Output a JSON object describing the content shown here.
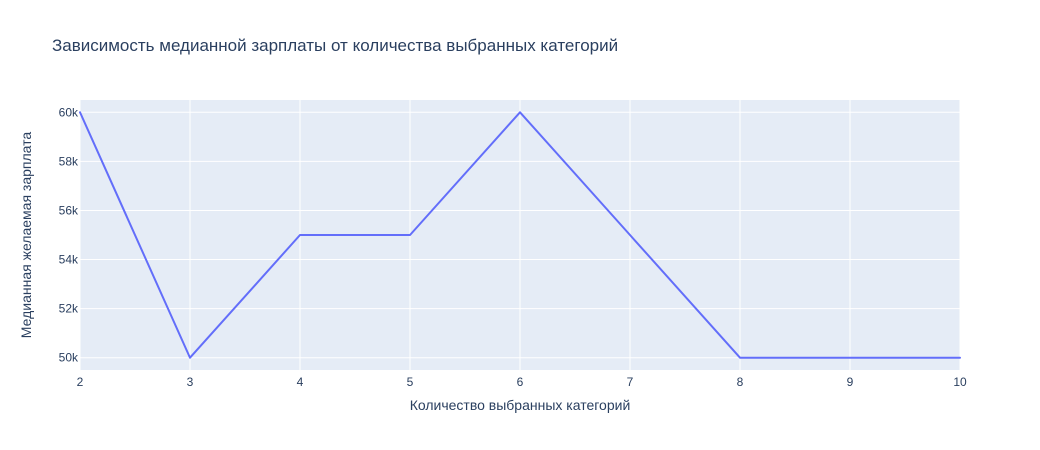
{
  "chart_data": {
    "type": "line",
    "title": "Зависимость медианной зарплаты от количества выбранных категорий",
    "xlabel": "Количество выбранных категорий",
    "ylabel": "Медианная желаемая зарплата",
    "x": [
      2,
      3,
      4,
      5,
      6,
      7,
      8,
      9,
      10
    ],
    "y": [
      60000,
      50000,
      55000,
      55000,
      60000,
      55000,
      50000,
      50000,
      50000
    ],
    "xlim": [
      2,
      10
    ],
    "ylim": [
      49500,
      60500
    ],
    "x_ticks": [
      2,
      3,
      4,
      5,
      6,
      7,
      8,
      9,
      10
    ],
    "x_tick_labels": [
      "2",
      "3",
      "4",
      "5",
      "6",
      "7",
      "8",
      "9",
      "10"
    ],
    "y_ticks": [
      50000,
      52000,
      54000,
      56000,
      58000,
      60000
    ],
    "y_tick_labels": [
      "50k",
      "52k",
      "54k",
      "56k",
      "58k",
      "60k"
    ],
    "grid": true,
    "legend": false,
    "colors": {
      "plot_background": "#e5ecf6",
      "grid": "#ffffff",
      "line": "#636efa",
      "text": "#2a3f5f"
    }
  }
}
